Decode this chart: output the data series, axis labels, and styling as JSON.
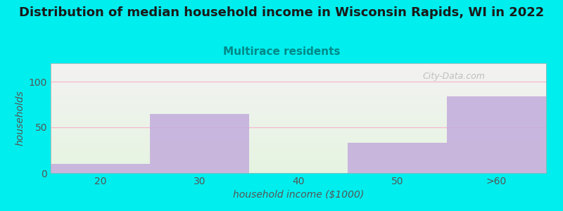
{
  "title": "Distribution of median household income in Wisconsin Rapids, WI in 2022",
  "subtitle": "Multirace residents",
  "xlabel": "household income ($1000)",
  "ylabel": "households",
  "categories": [
    "20",
    "30",
    "40",
    "50",
    ">60"
  ],
  "values": [
    10,
    65,
    0,
    33,
    84
  ],
  "bar_color": "#c4aedd",
  "background_color": "#00eeee",
  "plot_bg_top": "#f2f2f0",
  "plot_bg_bottom": "#e5f2e0",
  "title_color": "#1a1a1a",
  "subtitle_color": "#008888",
  "axis_color": "#555555",
  "grid_color": "#f5b8cc",
  "yticks": [
    0,
    50,
    100
  ],
  "ylim": [
    0,
    120
  ],
  "xlim": [
    0,
    5
  ],
  "watermark": "City-Data.com",
  "title_fontsize": 13,
  "subtitle_fontsize": 11,
  "bar_edges": [
    0,
    1,
    2,
    3,
    4,
    5
  ]
}
